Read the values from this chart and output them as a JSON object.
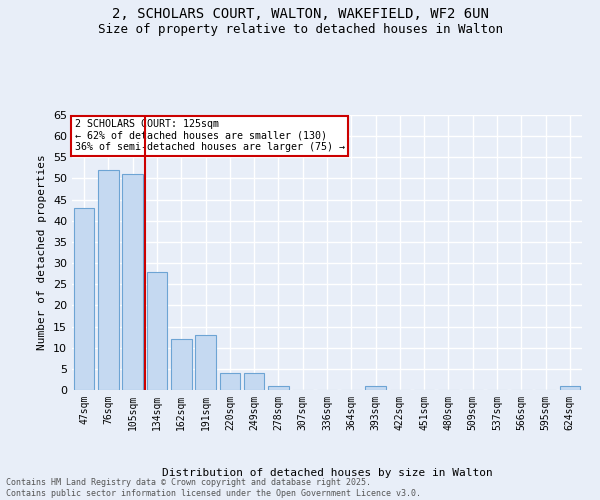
{
  "title1": "2, SCHOLARS COURT, WALTON, WAKEFIELD, WF2 6UN",
  "title2": "Size of property relative to detached houses in Walton",
  "xlabel": "Distribution of detached houses by size in Walton",
  "ylabel": "Number of detached properties",
  "categories": [
    "47sqm",
    "76sqm",
    "105sqm",
    "134sqm",
    "162sqm",
    "191sqm",
    "220sqm",
    "249sqm",
    "278sqm",
    "307sqm",
    "336sqm",
    "364sqm",
    "393sqm",
    "422sqm",
    "451sqm",
    "480sqm",
    "509sqm",
    "537sqm",
    "566sqm",
    "595sqm",
    "624sqm"
  ],
  "values": [
    43,
    52,
    51,
    28,
    12,
    13,
    4,
    4,
    1,
    0,
    0,
    0,
    1,
    0,
    0,
    0,
    0,
    0,
    0,
    0,
    1
  ],
  "bar_color": "#c5d9f1",
  "bar_edge_color": "#6da4d4",
  "vline_x": 2.5,
  "vline_color": "#cc0000",
  "annotation_text": "2 SCHOLARS COURT: 125sqm\n← 62% of detached houses are smaller (130)\n36% of semi-detached houses are larger (75) →",
  "annotation_box_color": "#ffffff",
  "annotation_box_edge": "#cc0000",
  "bg_color": "#e8eef8",
  "plot_bg_color": "#e8eef8",
  "grid_color": "#ffffff",
  "footer": "Contains HM Land Registry data © Crown copyright and database right 2025.\nContains public sector information licensed under the Open Government Licence v3.0.",
  "ylim": [
    0,
    65
  ],
  "yticks": [
    0,
    5,
    10,
    15,
    20,
    25,
    30,
    35,
    40,
    45,
    50,
    55,
    60,
    65
  ]
}
